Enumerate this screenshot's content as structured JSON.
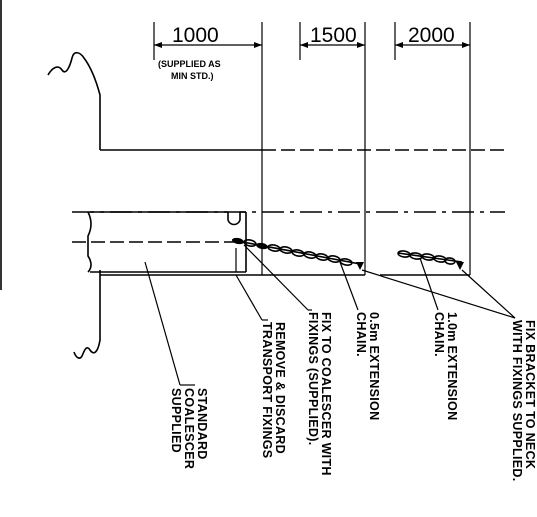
{
  "dimensions": {
    "d1000": "1000",
    "d1500": "1500",
    "d2000": "2000",
    "supplied_line1": "(SUPPLIED AS",
    "supplied_line2": "MIN STD.)"
  },
  "labels": {
    "standard": [
      "STANDARD",
      "COALESCER",
      "SUPPLIED"
    ],
    "remove": [
      "REMOVE & DISCARD",
      "TRANSPORT FIXINGS"
    ],
    "fix_coalescer": [
      "FIX TO COALESCER WITH",
      "FIXINGS (SUPPLIED)."
    ],
    "ext_05": [
      "0.5m EXTENSION",
      "CHAIN."
    ],
    "ext_10": [
      "1.0m EXTENSION",
      "CHAIN."
    ],
    "fix_bracket": [
      "FIX BRACKET TO NECK",
      "WITH FIXINGS SUPPLIED."
    ]
  }
}
